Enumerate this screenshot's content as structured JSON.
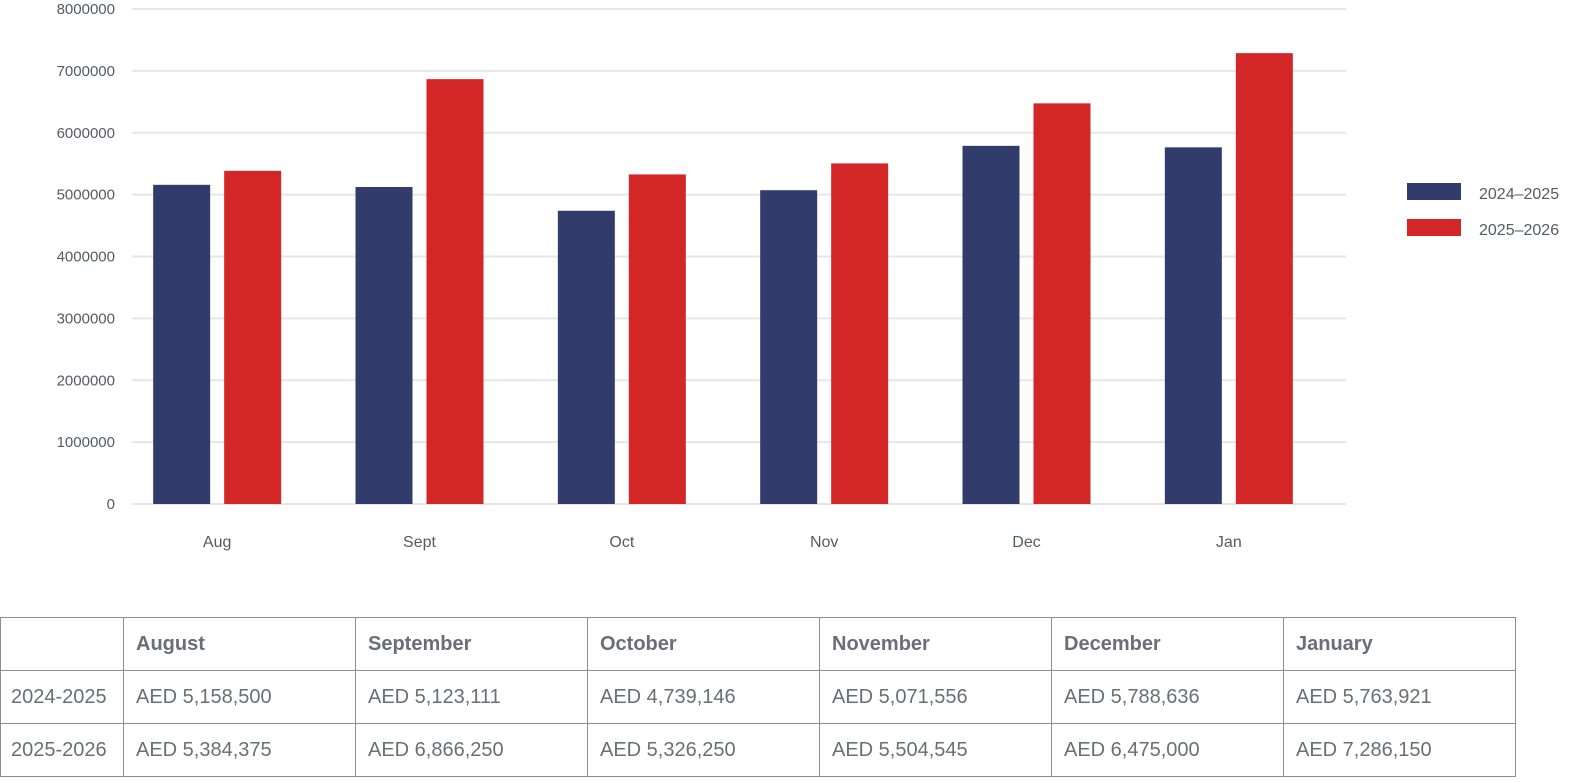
{
  "chart_data": {
    "type": "bar",
    "categories": [
      "Aug",
      "Sept",
      "Oct",
      "Nov",
      "Dec",
      "Jan"
    ],
    "series": [
      {
        "name": "2024–2025",
        "color": "#313c6c",
        "values": [
          5158500,
          5123111,
          4739146,
          5071556,
          5788636,
          5763921
        ]
      },
      {
        "name": "2025–2026",
        "color": "#d32626",
        "values": [
          5384375,
          6866250,
          5326250,
          5504545,
          6475000,
          7286150
        ]
      }
    ],
    "yticks": [
      "0",
      "1000000",
      "2000000",
      "3000000",
      "4000000",
      "5000000",
      "6000000",
      "7000000",
      "8000000"
    ],
    "ylim": [
      0,
      8000000
    ],
    "grid": true,
    "legend_position": "right"
  },
  "table": {
    "corner": "",
    "headers": [
      "August",
      "September",
      "October",
      "November",
      "December",
      "January"
    ],
    "rows": [
      {
        "label": "2024-2025",
        "cells": [
          "AED 5,158,500",
          "AED 5,123,111",
          "AED 4,739,146",
          "AED 5,071,556",
          "AED 5,788,636",
          "AED 5,763,921"
        ]
      },
      {
        "label": "2025-2026",
        "cells": [
          "AED 5,384,375",
          "AED 6,866,250",
          "AED 5,326,250",
          "AED 5,504,545",
          "AED 6,475,000",
          "AED 7,286,150"
        ]
      }
    ]
  }
}
